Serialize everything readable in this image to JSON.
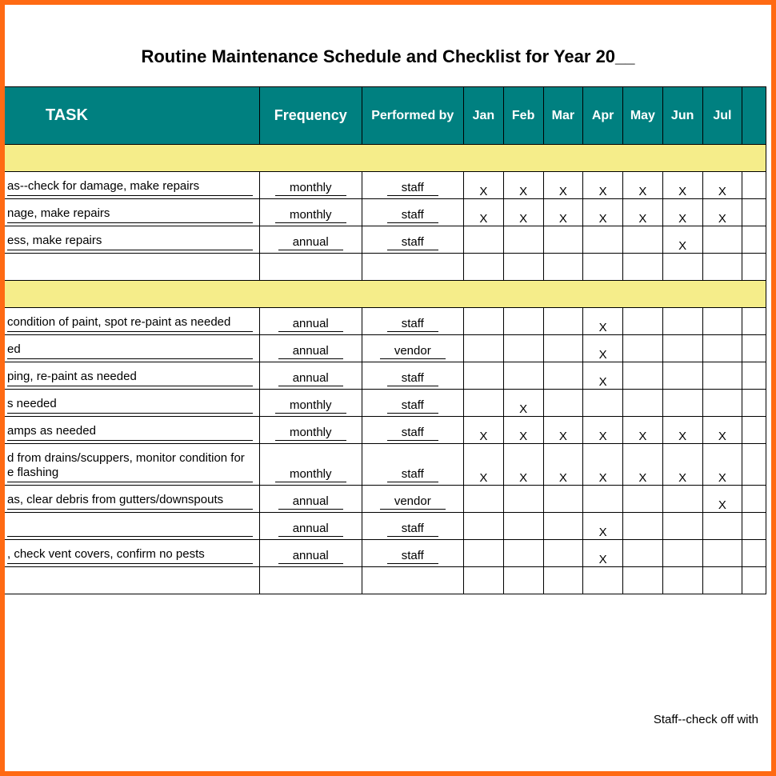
{
  "title": "Routine Maintenance Schedule and Checklist for Year 20__",
  "colors": {
    "frame_border": "#ff6a13",
    "header_bg": "#008080",
    "header_text": "#ffffff",
    "band_bg": "#f5ed8a",
    "cell_border": "#000000",
    "text": "#000000",
    "background": "#ffffff"
  },
  "columns": {
    "task": "TASK",
    "frequency": "Frequency",
    "performed_by": "Performed by",
    "months": [
      "Jan",
      "Feb",
      "Mar",
      "Apr",
      "May",
      "Jun",
      "Jul"
    ],
    "cutoff": ""
  },
  "mark_glyph": "X",
  "footer_note": "Staff--check off with",
  "sections": [
    {
      "rows": [
        {
          "task": "as--check for damage, make repairs",
          "frequency": "monthly",
          "performed_by": "staff",
          "marks": [
            true,
            true,
            true,
            true,
            true,
            true,
            true
          ]
        },
        {
          "task": "nage, make repairs",
          "frequency": "monthly",
          "performed_by": "staff",
          "marks": [
            true,
            true,
            true,
            true,
            true,
            true,
            true
          ]
        },
        {
          "task": "ess, make repairs",
          "frequency": "annual",
          "performed_by": "staff",
          "marks": [
            false,
            false,
            false,
            false,
            false,
            true,
            false
          ]
        },
        {
          "task": "",
          "frequency": "",
          "performed_by": "",
          "marks": [
            false,
            false,
            false,
            false,
            false,
            false,
            false
          ],
          "blank": true
        }
      ]
    },
    {
      "rows": [
        {
          "task": "condition of paint, spot re-paint as needed",
          "frequency": "annual",
          "performed_by": "staff",
          "marks": [
            false,
            false,
            false,
            true,
            false,
            false,
            false
          ]
        },
        {
          "task": "ed",
          "frequency": "annual",
          "performed_by": "vendor",
          "marks": [
            false,
            false,
            false,
            true,
            false,
            false,
            false
          ]
        },
        {
          "task": "ping, re-paint as needed",
          "frequency": "annual",
          "performed_by": "staff",
          "marks": [
            false,
            false,
            false,
            true,
            false,
            false,
            false
          ]
        },
        {
          "task": "s needed",
          "frequency": "monthly",
          "performed_by": "staff",
          "marks": [
            false,
            true,
            false,
            false,
            false,
            false,
            false
          ]
        },
        {
          "task": "amps as needed",
          "frequency": "monthly",
          "performed_by": "staff",
          "marks": [
            true,
            true,
            true,
            true,
            true,
            true,
            true
          ]
        },
        {
          "task": "d from drains/scuppers, monitor condition for e flashing",
          "frequency": "monthly",
          "performed_by": "staff",
          "marks": [
            true,
            true,
            true,
            true,
            true,
            true,
            true
          ],
          "tall": true
        },
        {
          "task": "as, clear debris from gutters/downspouts",
          "frequency": "annual",
          "performed_by": "vendor",
          "marks": [
            false,
            false,
            false,
            false,
            false,
            false,
            true
          ]
        },
        {
          "task": "",
          "frequency": "annual",
          "performed_by": "staff",
          "marks": [
            false,
            false,
            false,
            true,
            false,
            false,
            false
          ]
        },
        {
          "task": ", check vent covers, confirm no pests",
          "frequency": "annual",
          "performed_by": "staff",
          "marks": [
            false,
            false,
            false,
            true,
            false,
            false,
            false
          ]
        },
        {
          "task": "",
          "frequency": "",
          "performed_by": "",
          "marks": [
            false,
            false,
            false,
            false,
            false,
            false,
            false
          ],
          "blank": true
        }
      ]
    }
  ]
}
